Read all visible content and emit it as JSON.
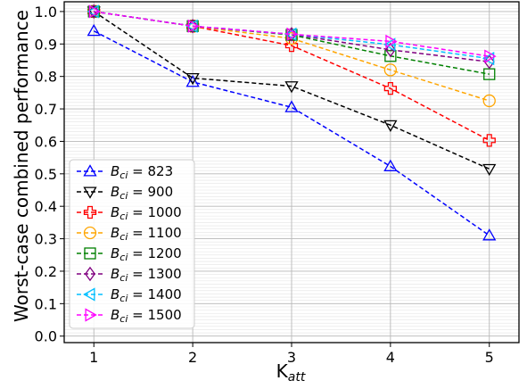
{
  "chart_data": {
    "type": "line",
    "xlabel_main": "K",
    "xlabel_sub": "att",
    "ylabel": "Worst-case combined performance",
    "x": [
      1,
      2,
      3,
      4,
      5
    ],
    "xlim": [
      0.7,
      5.3
    ],
    "ylim": [
      -0.02,
      1.03
    ],
    "xticks": [
      "1",
      "2",
      "3",
      "4",
      "5"
    ],
    "yticks": [
      "0.0",
      "0.1",
      "0.2",
      "0.3",
      "0.4",
      "0.5",
      "0.6",
      "0.7",
      "0.8",
      "0.9",
      "1.0"
    ],
    "ytick_values": [
      0.0,
      0.1,
      0.2,
      0.3,
      0.4,
      0.5,
      0.6,
      0.7,
      0.8,
      0.9,
      1.0
    ],
    "grid": true,
    "minor_grid": true,
    "legend_position": "lower-left",
    "series": [
      {
        "name_main": "B",
        "name_sub": "ci",
        "name_tail": " = 823",
        "color": "#0000ff",
        "marker": "triangle-up",
        "values": [
          0.94,
          0.783,
          0.705,
          0.523,
          0.31
        ]
      },
      {
        "name_main": "B",
        "name_sub": "ci",
        "name_tail": " = 900",
        "color": "#000000",
        "marker": "triangle-down",
        "values": [
          1.0,
          0.795,
          0.77,
          0.65,
          0.515
        ]
      },
      {
        "name_main": "B",
        "name_sub": "ci",
        "name_tail": " = 1000",
        "color": "#ff0000",
        "marker": "plus",
        "values": [
          1.0,
          0.955,
          0.895,
          0.763,
          0.603
        ]
      },
      {
        "name_main": "B",
        "name_sub": "ci",
        "name_tail": " = 1100",
        "color": "#ffa500",
        "marker": "circle",
        "values": [
          1.0,
          0.955,
          0.917,
          0.82,
          0.725
        ]
      },
      {
        "name_main": "B",
        "name_sub": "ci",
        "name_tail": " = 1200",
        "color": "#008000",
        "marker": "square",
        "values": [
          1.0,
          0.955,
          0.928,
          0.863,
          0.807
        ]
      },
      {
        "name_main": "B",
        "name_sub": "ci",
        "name_tail": " = 1300",
        "color": "#800080",
        "marker": "diamond",
        "values": [
          1.0,
          0.955,
          0.93,
          0.882,
          0.845
        ]
      },
      {
        "name_main": "B",
        "name_sub": "ci",
        "name_tail": " = 1400",
        "color": "#00bfff",
        "marker": "triangle-left",
        "values": [
          1.0,
          0.955,
          0.93,
          0.898,
          0.855
        ]
      },
      {
        "name_main": "B",
        "name_sub": "ci",
        "name_tail": " = 1500",
        "color": "#ff00ff",
        "marker": "triangle-right",
        "values": [
          1.0,
          0.955,
          0.93,
          0.908,
          0.862
        ]
      }
    ]
  }
}
